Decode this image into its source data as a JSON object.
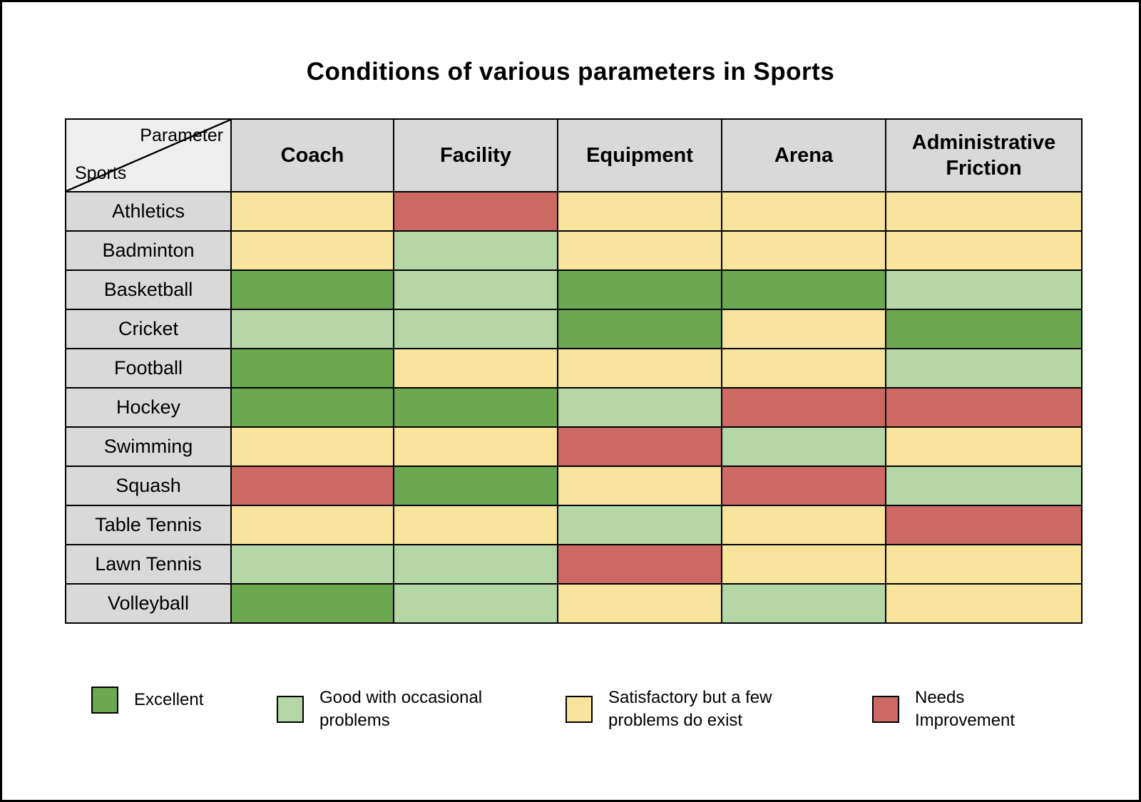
{
  "title": "Conditions of various parameters in Sports",
  "corner": {
    "top_label": "Parameter",
    "bottom_label": "Sports"
  },
  "colors": {
    "header_bg": "#d9d9d9",
    "corner_bg": "#eeeeee",
    "border": "#000000",
    "background": "#ffffff"
  },
  "chart_data": {
    "type": "heatmap",
    "title": "Conditions of various parameters in Sports",
    "columns": [
      "Coach",
      "Facility",
      "Equipment",
      "Arena",
      "Administrative Friction"
    ],
    "rows": [
      "Athletics",
      "Badminton",
      "Basketball",
      "Cricket",
      "Football",
      "Hockey",
      "Swimming",
      "Squash",
      "Table Tennis",
      "Lawn Tennis",
      "Volleyball"
    ],
    "values": [
      [
        "satisfactory",
        "needs_improvement",
        "satisfactory",
        "satisfactory",
        "satisfactory"
      ],
      [
        "satisfactory",
        "good",
        "satisfactory",
        "satisfactory",
        "satisfactory"
      ],
      [
        "excellent",
        "good",
        "excellent",
        "excellent",
        "good"
      ],
      [
        "good",
        "good",
        "excellent",
        "satisfactory",
        "excellent"
      ],
      [
        "excellent",
        "satisfactory",
        "satisfactory",
        "satisfactory",
        "good"
      ],
      [
        "excellent",
        "excellent",
        "good",
        "needs_improvement",
        "needs_improvement"
      ],
      [
        "satisfactory",
        "satisfactory",
        "needs_improvement",
        "good",
        "satisfactory"
      ],
      [
        "needs_improvement",
        "excellent",
        "satisfactory",
        "needs_improvement",
        "good"
      ],
      [
        "satisfactory",
        "satisfactory",
        "good",
        "satisfactory",
        "needs_improvement"
      ],
      [
        "good",
        "good",
        "needs_improvement",
        "satisfactory",
        "satisfactory"
      ],
      [
        "excellent",
        "good",
        "satisfactory",
        "good",
        "satisfactory"
      ]
    ],
    "legend": [
      {
        "key": "excellent",
        "label": "Excellent",
        "color": "#6ba84f"
      },
      {
        "key": "good",
        "label": "Good with occasional problems",
        "color": "#b5d7a5"
      },
      {
        "key": "satisfactory",
        "label": "Satisfactory but a few problems do exist",
        "color": "#f8e49c"
      },
      {
        "key": "needs_improvement",
        "label": "Needs Improvement",
        "color": "#cc6963"
      }
    ],
    "legend_position": "bottom",
    "grid": true
  }
}
